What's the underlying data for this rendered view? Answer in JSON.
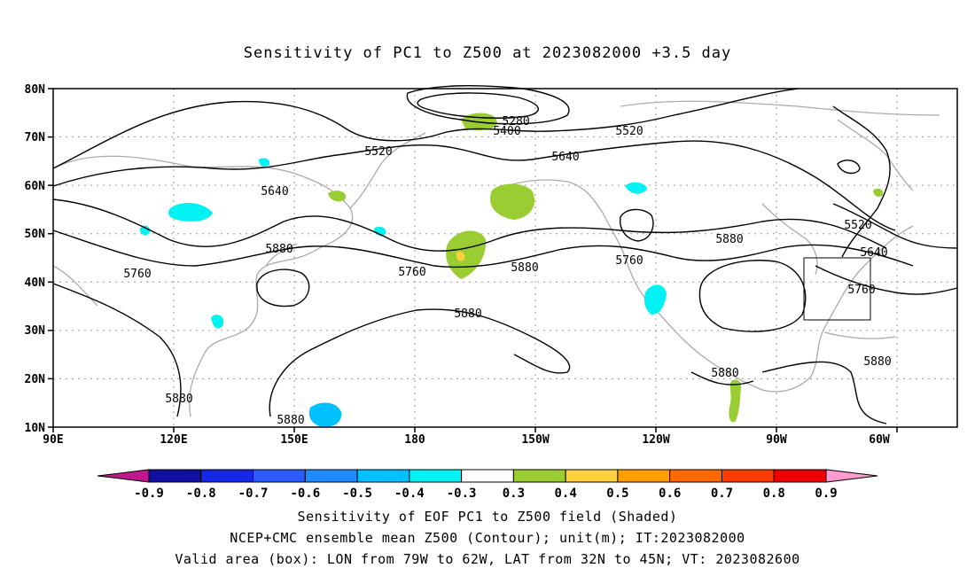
{
  "title": "Sensitivity of PC1 to Z500 at 2023082000 +3.5 day",
  "lat_labels": [
    "80N",
    "70N",
    "60N",
    "50N",
    "40N",
    "30N",
    "20N",
    "10N"
  ],
  "lon_labels": [
    "90E",
    "120E",
    "150E",
    "180",
    "150W",
    "120W",
    "90W",
    "60W"
  ],
  "contour_labels": [
    {
      "text": "5280"
    },
    {
      "text": "5400"
    },
    {
      "text": "5520"
    },
    {
      "text": "5520"
    },
    {
      "text": "5640"
    },
    {
      "text": "5520"
    },
    {
      "text": "5640"
    },
    {
      "text": "5760"
    },
    {
      "text": "5880"
    },
    {
      "text": "5760"
    },
    {
      "text": "5880"
    },
    {
      "text": "5760"
    },
    {
      "text": "5880"
    },
    {
      "text": "5880"
    },
    {
      "text": "5640"
    },
    {
      "text": "5760"
    },
    {
      "text": "5880"
    },
    {
      "text": "5880"
    },
    {
      "text": "5880"
    }
  ],
  "colorbar": {
    "colors": [
      "#c0188c",
      "#1010a0",
      "#1428e6",
      "#2a5cff",
      "#1e8cff",
      "#00c0ff",
      "#00f2f2",
      "#ffffff",
      "#9acd32",
      "#ffd040",
      "#ffa000",
      "#ff6a00",
      "#ff3c00",
      "#ee0000",
      "#ff9ccf"
    ],
    "tick_labels": [
      "-0.9",
      "-0.8",
      "-0.7",
      "-0.6",
      "-0.5",
      "-0.4",
      "-0.3",
      "0.3",
      "0.4",
      "0.5",
      "0.6",
      "0.7",
      "0.8",
      "0.9"
    ]
  },
  "footer": {
    "line1": "Sensitivity of EOF PC1 to Z500 field (Shaded)",
    "line2": "NCEP+CMC ensemble mean Z500 (Contour); unit(m); IT:2023082000",
    "line3": "Valid area (box): LON from 79W to 62W, LAT from 32N to 45N; VT: 2023082600"
  },
  "valid_box": {
    "lon_range": [
      "79W",
      "62W"
    ],
    "lat_range": [
      "32N",
      "45N"
    ]
  }
}
